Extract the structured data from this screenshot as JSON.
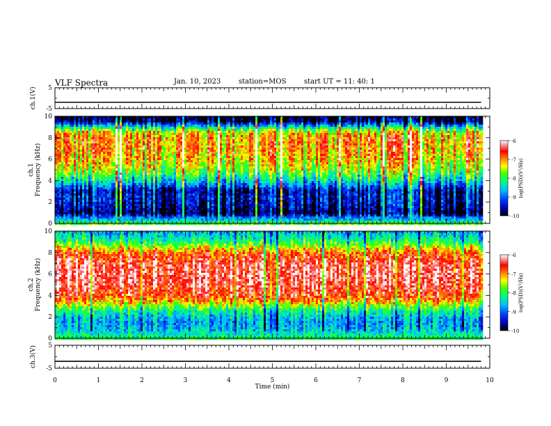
{
  "header": {
    "title": "VLF Spectra",
    "date": "Jan. 10, 2023",
    "station": "station=MOS",
    "start_ut": "start UT =  11: 40: 1"
  },
  "chart_data": [
    {
      "type": "line",
      "panel": "ch1-voltage",
      "ylabel": "ch.1(V)",
      "ylim": [
        -5,
        5
      ],
      "y_ticks": [
        "5",
        "-5"
      ],
      "series": [
        {
          "values": [
            -2,
            -2
          ],
          "x": [
            0,
            9.8
          ]
        }
      ]
    },
    {
      "type": "heatmap",
      "panel": "ch1-spectrogram",
      "channel_label": "ch.1",
      "ylabel": "Frequency (kHz)",
      "ylim": [
        0,
        10
      ],
      "y_ticks": [
        "0",
        "2",
        "4",
        "6",
        "8",
        "10"
      ],
      "xlim": [
        0,
        9.8
      ],
      "colorbar": {
        "label": "log(PSD)(V²/Hz)",
        "range": [
          -10,
          -6
        ],
        "ticks": [
          "-6",
          "-7",
          "-8",
          "-9",
          "-10"
        ]
      },
      "intensity_profile": {
        "frequency_khz": [
          0.0,
          0.3,
          0.6,
          0.8,
          1.0,
          1.5,
          2.0,
          2.5,
          3.0,
          3.5,
          4.0,
          4.5,
          5.0,
          6.0,
          7.0,
          8.0,
          8.5,
          9.0,
          9.5,
          10.0
        ],
        "log_psd": [
          -7.8,
          -8.6,
          -9.0,
          -9.6,
          -9.9,
          -9.6,
          -9.5,
          -9.4,
          -9.6,
          -9.0,
          -8.4,
          -8.0,
          -7.6,
          -7.2,
          -7.0,
          -7.0,
          -7.3,
          -8.4,
          -9.8,
          -10.0
        ]
      }
    },
    {
      "type": "heatmap",
      "panel": "ch2-spectrogram",
      "channel_label": "ch.2",
      "ylabel": "Frequency (kHz)",
      "ylim": [
        0,
        10
      ],
      "y_ticks": [
        "0",
        "2",
        "4",
        "6",
        "8",
        "10"
      ],
      "xlim": [
        0,
        9.8
      ],
      "colorbar": {
        "label": "log(PSD)(V²/Hz)",
        "range": [
          -10,
          -6
        ],
        "ticks": [
          "-6",
          "-7",
          "-8",
          "-9",
          "-10"
        ]
      },
      "intensity_profile": {
        "frequency_khz": [
          0.0,
          0.5,
          1.0,
          1.5,
          2.0,
          2.5,
          3.0,
          3.5,
          4.0,
          5.0,
          6.0,
          7.0,
          8.0,
          8.5,
          9.0,
          9.5,
          10.0
        ],
        "log_psd": [
          -8.0,
          -8.4,
          -8.6,
          -8.7,
          -8.5,
          -8.2,
          -7.6,
          -7.0,
          -6.6,
          -6.4,
          -6.3,
          -6.4,
          -6.8,
          -7.4,
          -8.0,
          -8.4,
          -8.6
        ]
      }
    },
    {
      "type": "line",
      "panel": "ch3-voltage",
      "ylabel": "ch.3(V)",
      "ylim": [
        -5,
        5
      ],
      "y_ticks": [
        "5",
        "-5"
      ],
      "x_ticks": [
        "0",
        "1",
        "2",
        "3",
        "4",
        "5",
        "6",
        "7",
        "8",
        "9",
        "10"
      ],
      "xlabel": "Time (min)",
      "xlim": [
        0,
        10
      ],
      "series": [
        {
          "values": [
            -2,
            -2
          ],
          "x": [
            0,
            9.8
          ]
        }
      ]
    }
  ],
  "colors": {
    "colormap": [
      "#000080",
      "#0000ff",
      "#00a0ff",
      "#00ffc0",
      "#00ff00",
      "#ffff00",
      "#ff8000",
      "#ff0000",
      "#ffffff"
    ]
  }
}
